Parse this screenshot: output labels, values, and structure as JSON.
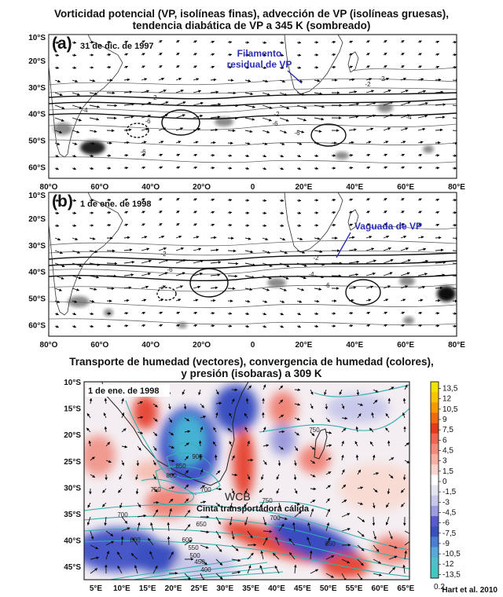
{
  "figure": {
    "title_top": [
      "Vorticidad potencial (VP, isolíneas finas), advección de VP (isolíneas gruesas),",
      "tendencia diabática de VP a 345 K (sombreado)"
    ],
    "title_bottom": [
      "Transporte de humedad (vectores), convergencia de humedad (colores),",
      "y presión (isobaras) a 309 K"
    ],
    "credit": "Hart et al. 2010"
  },
  "panels": {
    "a": {
      "letter": "(a)",
      "date": "31 de dic. de 1997",
      "annotation": [
        "Filamento",
        "residual de VP"
      ],
      "pv_labels": [
        "-2",
        "-2",
        "-2",
        "-4",
        "-6",
        "-6",
        "-6",
        "-4",
        "-6",
        "-2"
      ]
    },
    "b": {
      "letter": "(b)",
      "date": "1 de ene. de 1998",
      "annotation": [
        "Vaguada de VP"
      ],
      "pv_labels": [
        "-2",
        "-6",
        "-2",
        "-4",
        "-6"
      ]
    },
    "c": {
      "date": "1 de ene. de 1998",
      "wcb_label": "WCB",
      "wcb_sub": "Cinta transportadora cálida",
      "isobar_labels": [
        "750",
        "900",
        "850",
        "800",
        "750",
        "700",
        "700",
        "650",
        "750",
        "700",
        "650",
        "600",
        "550",
        "500",
        "450",
        "400",
        "600"
      ]
    }
  },
  "axes": {
    "top_lat_labels": [
      "10°S",
      "20°S",
      "30°S",
      "40°S",
      "50°S",
      "60°S"
    ],
    "top_lon_labels": [
      "80°O",
      "60°O",
      "40°O",
      "20°O",
      "0",
      "20°E",
      "40°E",
      "60°E",
      "80°E"
    ],
    "bottom_lat_labels": [
      "10°S",
      "15°S",
      "20°S",
      "25°S",
      "30°S",
      "35°S",
      "40°S",
      "45°S"
    ],
    "bottom_lon_labels": [
      "5°E",
      "10°E",
      "15°E",
      "20°E",
      "25°E",
      "30°E",
      "35°E",
      "40°E",
      "45°E",
      "50°E",
      "55°E",
      "60°E",
      "65°E"
    ]
  },
  "colorbar": {
    "labels": [
      "13,5",
      "12",
      "10,5",
      "9",
      "7,5",
      "6",
      "4,5",
      "3",
      "1,5",
      "0",
      "-1,5",
      "-3",
      "-4,5",
      "-6",
      "-7,5",
      "-9",
      "-10,5",
      "-12",
      "-13,5"
    ],
    "bottom_label": "0.2",
    "colors": [
      "#f2e400",
      "#f7c400",
      "#f79a00",
      "#ef6a10",
      "#e33a1e",
      "#ee6550",
      "#f58a7a",
      "#f8b0a2",
      "#fad4cc",
      "#ffffff",
      "#e4e4f2",
      "#c8c8ea",
      "#9c9cde",
      "#5a5ad0",
      "#3a50c0",
      "#4a7ed0",
      "#5aa8d8",
      "#4fbfc8",
      "#42c8c0"
    ]
  }
}
